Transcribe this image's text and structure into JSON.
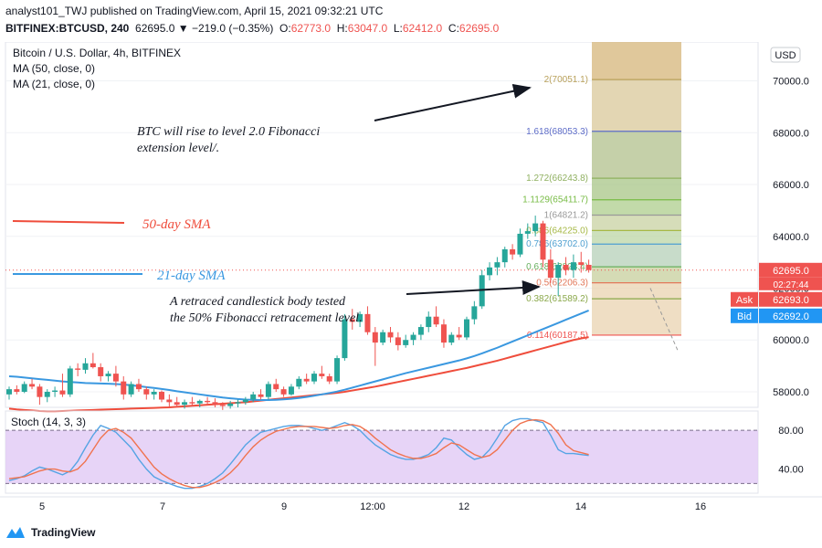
{
  "header": {
    "publisher_line": "analyst101_TWJ published on TradingView.com, April 15, 2021 09:32:21 UTC",
    "symbol": "BITFINEX:BTCUSD, 240",
    "change": "62695.0 ▼ −219.0 (−0.35%)",
    "open_key": "O:",
    "open": "62773.0",
    "high_key": "H:",
    "high": "63047.0",
    "low_key": "L:",
    "low": "62412.0",
    "close_key": "C:",
    "close": "62695.0"
  },
  "legend": {
    "title": "Bitcoin / U.S. Dollar, 4h, BITFINEX",
    "ma1": "MA (50, close, 0)",
    "ma2": "MA (21, close, 0)"
  },
  "currency_button": "USD",
  "price_tags": {
    "last": "62695.0",
    "countdown": "02:27:44",
    "ask_label": "Ask",
    "ask": "62693.0",
    "bid_label": "Bid",
    "bid": "62692.0"
  },
  "annotations": {
    "fib_extension": "BTC will rise to level 2.0 Fibonacci\nextension level/.",
    "retracement": "A retraced candlestick body tested\nthe 50% Fibonacci retracement level.",
    "sma50": "50-day SMA",
    "sma21": "21-day SMA"
  },
  "stoch": {
    "label": "Stoch (14, 3, 3)",
    "levels": [
      "80.00",
      "40.00"
    ]
  },
  "footer": {
    "brand": "TradingView"
  },
  "colors": {
    "up": "#26a69a",
    "down": "#ef5350",
    "sma50": "#ef4d3c",
    "sma21": "#3a98e0",
    "stoch_k": "#56a4e4",
    "stoch_d": "#f0734f",
    "stoch_band": "#e1c9f5"
  },
  "chart_data": [
    {
      "type": "candlestick",
      "title": "Bitcoin / U.S. Dollar, 4h, BITFINEX",
      "x_ticks": [
        "5",
        "7",
        "9",
        "12:00",
        "12",
        "14",
        "16"
      ],
      "y_ticks": [
        "58000.0",
        "60000.0",
        "62000.0",
        "64000.0",
        "66000.0",
        "68000.0",
        "70000.0"
      ],
      "ylim": [
        57400,
        71500
      ],
      "candles": [
        [
          57900,
          58200,
          57700,
          58100
        ],
        [
          58100,
          58250,
          57900,
          58000
        ],
        [
          58000,
          58400,
          57950,
          58300
        ],
        [
          58300,
          58500,
          58100,
          58200
        ],
        [
          58200,
          58300,
          57500,
          57800
        ],
        [
          57800,
          58100,
          57600,
          58000
        ],
        [
          58000,
          58200,
          57800,
          58050
        ],
        [
          58050,
          58700,
          57800,
          57900
        ],
        [
          57900,
          59000,
          57800,
          58900
        ],
        [
          58900,
          59100,
          58600,
          58850
        ],
        [
          58850,
          59300,
          58700,
          59100
        ],
        [
          59100,
          59500,
          58900,
          58950
        ],
        [
          58950,
          59100,
          58400,
          58600
        ],
        [
          58600,
          58800,
          58400,
          58700
        ],
        [
          58700,
          59000,
          58200,
          58400
        ],
        [
          58400,
          58600,
          57700,
          57900
        ],
        [
          57900,
          58400,
          57800,
          58300
        ],
        [
          58300,
          58500,
          58000,
          58100
        ],
        [
          58100,
          58200,
          57700,
          57900
        ],
        [
          57900,
          58100,
          57700,
          58000
        ],
        [
          58000,
          58050,
          57600,
          57700
        ],
        [
          57700,
          57900,
          57400,
          57600
        ],
        [
          57600,
          57800,
          57400,
          57500
        ],
        [
          57500,
          57700,
          57350,
          57600
        ],
        [
          57600,
          57800,
          57450,
          57550
        ],
        [
          57550,
          57700,
          57400,
          57650
        ],
        [
          57650,
          57800,
          57500,
          57600
        ],
        [
          57600,
          57750,
          57400,
          57500
        ],
        [
          57500,
          57600,
          57300,
          57450
        ],
        [
          57450,
          57650,
          57350,
          57550
        ],
        [
          57550,
          57700,
          57400,
          57600
        ],
        [
          57600,
          57800,
          57500,
          57700
        ],
        [
          57700,
          58000,
          57600,
          57900
        ],
        [
          57900,
          58100,
          57700,
          57800
        ],
        [
          57800,
          58400,
          57700,
          58300
        ],
        [
          58300,
          58500,
          58000,
          58100
        ],
        [
          58100,
          58200,
          57800,
          57900
        ],
        [
          57900,
          58300,
          57850,
          58200
        ],
        [
          58200,
          58600,
          58100,
          58500
        ],
        [
          58500,
          58700,
          58300,
          58400
        ],
        [
          58400,
          58800,
          58300,
          58700
        ],
        [
          58700,
          59000,
          58500,
          58600
        ],
        [
          58600,
          58700,
          58300,
          58400
        ],
        [
          58400,
          59400,
          58300,
          59300
        ],
        [
          59300,
          61000,
          59200,
          60800
        ],
        [
          60800,
          61200,
          60400,
          60700
        ],
        [
          60700,
          61100,
          60500,
          61000
        ],
        [
          61000,
          61300,
          60200,
          60300
        ],
        [
          60300,
          60500,
          59000,
          59900
        ],
        [
          59900,
          60400,
          59800,
          60300
        ],
        [
          60300,
          60500,
          59900,
          60100
        ],
        [
          60100,
          60300,
          59600,
          59800
        ],
        [
          59800,
          60200,
          59700,
          60000
        ],
        [
          60000,
          60300,
          59800,
          60200
        ],
        [
          60200,
          60600,
          60000,
          60500
        ],
        [
          60500,
          61100,
          60300,
          60900
        ],
        [
          60900,
          61300,
          60500,
          60600
        ],
        [
          60600,
          60800,
          59700,
          59900
        ],
        [
          59900,
          60300,
          59800,
          60200
        ],
        [
          60200,
          60500,
          60000,
          60100
        ],
        [
          60100,
          60900,
          60000,
          60800
        ],
        [
          60800,
          61500,
          60600,
          61300
        ],
        [
          61300,
          62700,
          61200,
          62500
        ],
        [
          62500,
          63000,
          62300,
          62800
        ],
        [
          62800,
          63200,
          62500,
          63000
        ],
        [
          63000,
          63600,
          62800,
          63500
        ],
        [
          63500,
          63700,
          63100,
          63300
        ],
        [
          63300,
          64300,
          63200,
          64100
        ],
        [
          64100,
          64500,
          63900,
          64200
        ],
        [
          64200,
          64800,
          64000,
          64500
        ],
        [
          64500,
          64600,
          62800,
          63100
        ],
        [
          63100,
          63500,
          62200,
          62400
        ],
        [
          62400,
          63000,
          61700,
          62900
        ],
        [
          62900,
          63200,
          62500,
          62700
        ],
        [
          62700,
          63300,
          62400,
          63000
        ],
        [
          63000,
          63400,
          62600,
          62900
        ],
        [
          62900,
          63100,
          62600,
          62700
        ]
      ],
      "series": [
        {
          "name": "MA (50, close, 0)",
          "values": [
            57350,
            57320,
            57300,
            57280,
            57260,
            57250,
            57250,
            57260,
            57270,
            57280,
            57290,
            57300,
            57310,
            57320,
            57330,
            57340,
            57350,
            57360,
            57370,
            57380,
            57390,
            57400,
            57420,
            57440,
            57460,
            57480,
            57500,
            57520,
            57540,
            57560,
            57580,
            57600,
            57630,
            57660,
            57690,
            57720,
            57750,
            57780,
            57810,
            57840,
            57870,
            57900,
            57930,
            57960,
            58000,
            58050,
            58100,
            58150,
            58200,
            58260,
            58320,
            58380,
            58440,
            58500,
            58560,
            58620,
            58680,
            58740,
            58800,
            58860,
            58920,
            58990,
            59060,
            59130,
            59200,
            59280,
            59360,
            59440,
            59520,
            59600,
            59680,
            59760,
            59840,
            59920,
            60000,
            60060,
            60110
          ]
        },
        {
          "name": "MA (21, close, 0)",
          "values": [
            58600,
            58580,
            58550,
            58520,
            58490,
            58460,
            58430,
            58400,
            58380,
            58360,
            58340,
            58330,
            58320,
            58310,
            58300,
            58280,
            58250,
            58220,
            58180,
            58150,
            58110,
            58070,
            58020,
            57980,
            57940,
            57900,
            57860,
            57820,
            57780,
            57750,
            57720,
            57700,
            57690,
            57680,
            57680,
            57690,
            57710,
            57730,
            57760,
            57800,
            57850,
            57900,
            57950,
            58010,
            58080,
            58160,
            58240,
            58320,
            58400,
            58480,
            58560,
            58640,
            58720,
            58790,
            58860,
            58930,
            59000,
            59070,
            59140,
            59210,
            59290,
            59380,
            59480,
            59590,
            59700,
            59820,
            59940,
            60060,
            60180,
            60300,
            60420,
            60540,
            60660,
            60780,
            60900,
            61020,
            61140
          ]
        }
      ],
      "fibonacci": [
        {
          "ratio": "2",
          "price": "70051.1"
        },
        {
          "ratio": "1.618",
          "price": "68053.3"
        },
        {
          "ratio": "1.272",
          "price": "66243.8"
        },
        {
          "ratio": "1.1129",
          "price": "65411.7"
        },
        {
          "ratio": "1",
          "price": "64821.2"
        },
        {
          "ratio": "0.886",
          "price": "64225.0"
        },
        {
          "ratio": "0.786",
          "price": "63702.0"
        },
        {
          "ratio": "0.618",
          "price": "62823.4"
        },
        {
          "ratio": "0.5",
          "price": "62206.3"
        },
        {
          "ratio": "0.382",
          "price": "61589.2"
        },
        {
          "ratio": "0.114",
          "price": "60187.5"
        }
      ]
    },
    {
      "type": "line",
      "title": "Stoch (14, 3, 3)",
      "y_ticks": [
        "80.00",
        "40.00"
      ],
      "ylim": [
        15,
        100
      ],
      "band": [
        25,
        80
      ],
      "series": [
        {
          "name": "%K",
          "values": [
            28,
            30,
            33,
            38,
            42,
            40,
            37,
            34,
            38,
            48,
            62,
            75,
            85,
            82,
            78,
            70,
            62,
            50,
            40,
            32,
            28,
            25,
            22,
            20,
            20,
            22,
            25,
            30,
            36,
            45,
            55,
            65,
            72,
            78,
            80,
            82,
            84,
            85,
            85,
            84,
            82,
            80,
            82,
            85,
            88,
            85,
            80,
            72,
            65,
            60,
            55,
            52,
            50,
            50,
            52,
            55,
            62,
            72,
            70,
            62,
            55,
            50,
            52,
            60,
            72,
            85,
            90,
            92,
            92,
            90,
            88,
            75,
            60,
            56,
            56,
            55,
            54
          ]
        },
        {
          "name": "%D",
          "values": [
            30,
            31,
            32,
            35,
            38,
            40,
            40,
            38,
            37,
            40,
            48,
            60,
            72,
            80,
            82,
            78,
            72,
            62,
            52,
            42,
            35,
            30,
            26,
            23,
            21,
            21,
            23,
            26,
            30,
            36,
            44,
            54,
            63,
            70,
            75,
            79,
            81,
            83,
            84,
            84,
            84,
            83,
            82,
            83,
            85,
            86,
            84,
            79,
            72,
            66,
            60,
            56,
            53,
            51,
            51,
            53,
            56,
            62,
            67,
            65,
            60,
            55,
            52,
            54,
            60,
            70,
            80,
            87,
            90,
            91,
            90,
            86,
            77,
            65,
            59,
            57,
            55
          ]
        }
      ]
    }
  ]
}
